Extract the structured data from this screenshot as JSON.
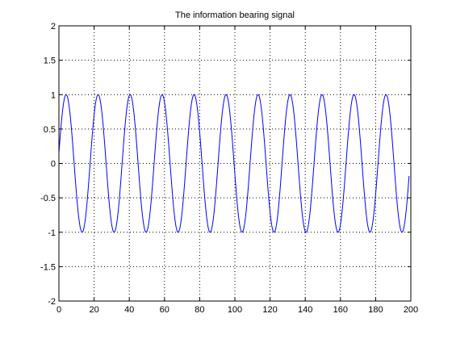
{
  "chart_data": {
    "type": "line",
    "title": "The information bearing signal",
    "xlabel": "",
    "ylabel": "",
    "xlim": [
      0,
      200
    ],
    "ylim": [
      -2,
      2
    ],
    "grid": true,
    "grid_style": "dotted",
    "x_ticks": [
      "0",
      "20",
      "40",
      "60",
      "80",
      "100",
      "120",
      "140",
      "160",
      "180",
      "200"
    ],
    "y_ticks": [
      "-2",
      "-1.5",
      "-1",
      "-0.5",
      "0",
      "0.5",
      "1",
      "1.5",
      "2"
    ],
    "series": [
      {
        "color": "#0000ff",
        "function": "sin",
        "amplitude": 1,
        "period": 18.18,
        "phase_rad": 0.155,
        "x_range": [
          0,
          199
        ]
      }
    ]
  },
  "colors": {
    "background": "#ffffff",
    "axes": "#000000",
    "grid": "#000000",
    "line": "#0000ff"
  }
}
